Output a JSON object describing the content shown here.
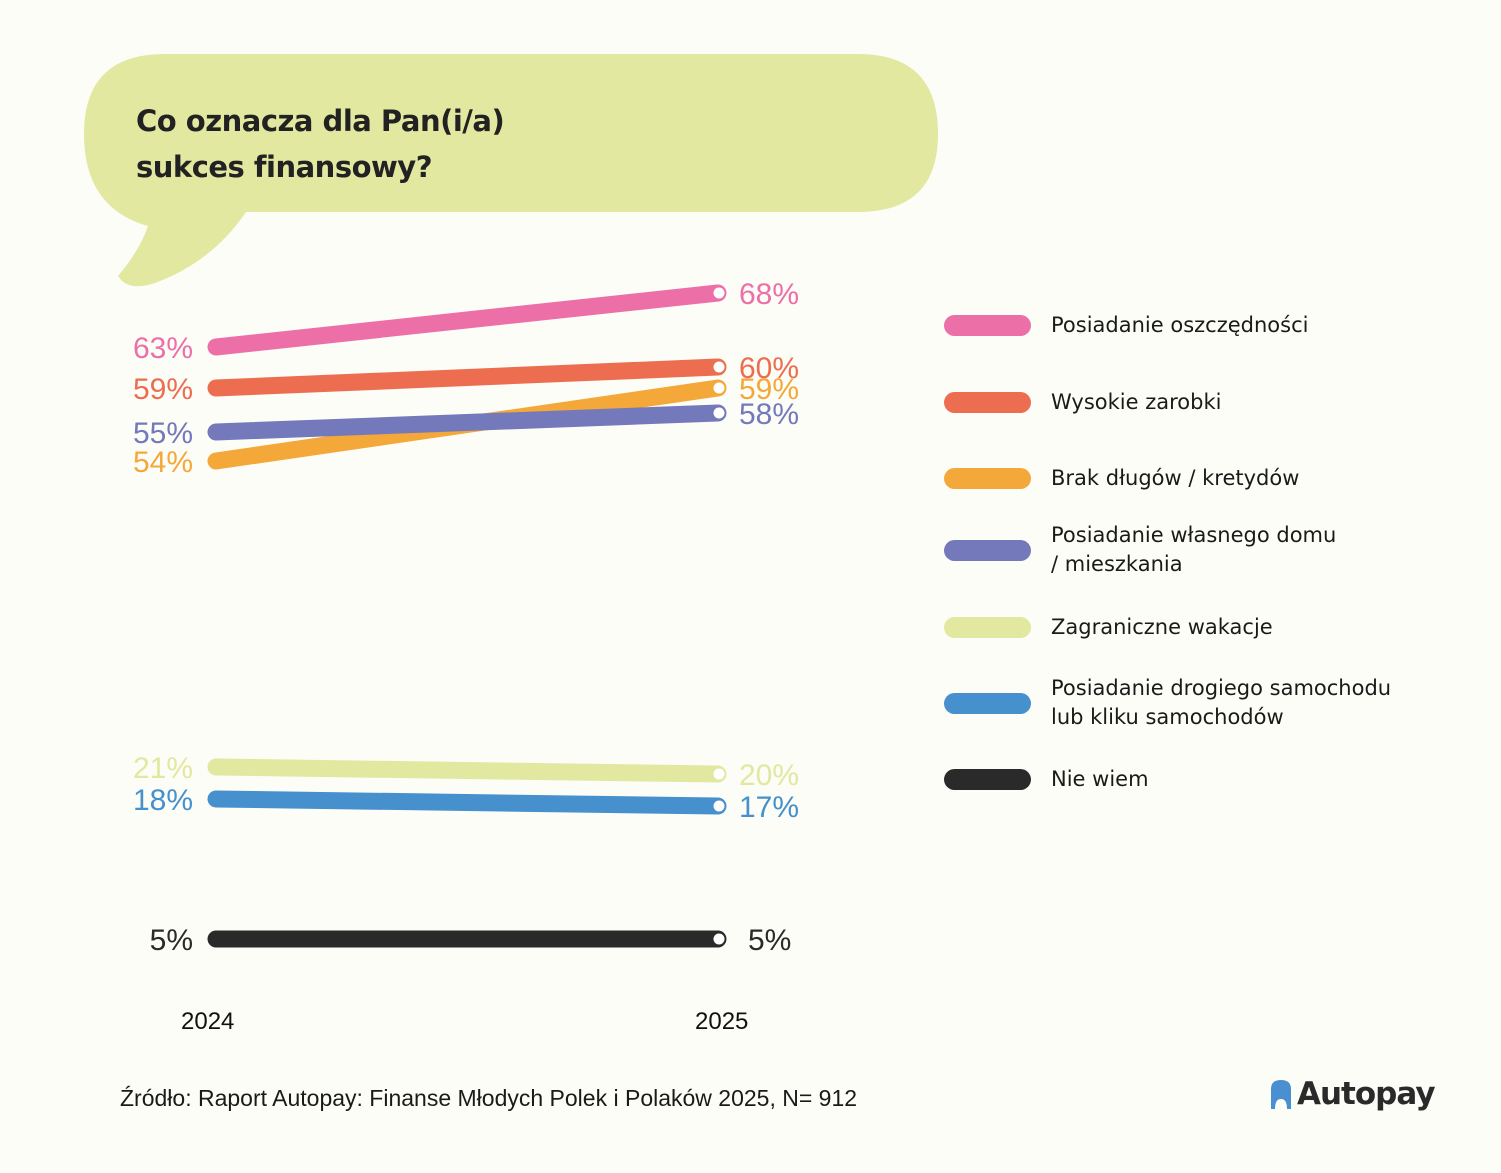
{
  "chart_data": {
    "type": "line",
    "title": "Co oznacza dla Pan(i/a) sukces finansowy?",
    "title_lines": [
      "Co oznacza dla Pan(i/a)",
      "sukces finansowy?"
    ],
    "x": [
      "2024",
      "2025"
    ],
    "ylabel": "",
    "xlabel": "",
    "grid": false,
    "legend_position": "right",
    "series": [
      {
        "name": "Posiadanie oszczędności",
        "color": "#ec6fa8",
        "values": [
          63,
          68
        ],
        "labels": [
          "63%",
          "68%"
        ]
      },
      {
        "name": "Wysokie zarobki",
        "color": "#ec6d4f",
        "values": [
          59,
          60
        ],
        "labels": [
          "59%",
          "60%"
        ]
      },
      {
        "name": "Brak długów / kretydów",
        "color": "#f4a83a",
        "values": [
          54,
          59
        ],
        "labels": [
          "54%",
          "59%"
        ]
      },
      {
        "name": "Posiadanie własnego domu\n/ mieszkania",
        "color": "#7479bb",
        "values": [
          55,
          58
        ],
        "labels": [
          "55%",
          "58%"
        ]
      },
      {
        "name": "Zagraniczne wakacje",
        "color": "#e2e8a0",
        "values": [
          21,
          20
        ],
        "labels": [
          "21%",
          "20%"
        ]
      },
      {
        "name": "Posiadanie drogiego samochodu\nlub kliku samochodów",
        "color": "#4590cd",
        "values": [
          18,
          17
        ],
        "labels": [
          "18%",
          "17%"
        ]
      },
      {
        "name": "Nie wiem",
        "color": "#2a2a2a",
        "values": [
          5,
          5
        ],
        "labels": [
          "5%",
          "5%"
        ]
      }
    ]
  },
  "bubble_color": "#e2e8a0",
  "footer": {
    "source": "Źródło: Raport Autopay: Finanse Młodych Polek i Polaków 2025, N= 912",
    "logo_text": "Autopay",
    "logo_icon": "arch-icon",
    "logo_icon_color": "#4a90d0"
  }
}
